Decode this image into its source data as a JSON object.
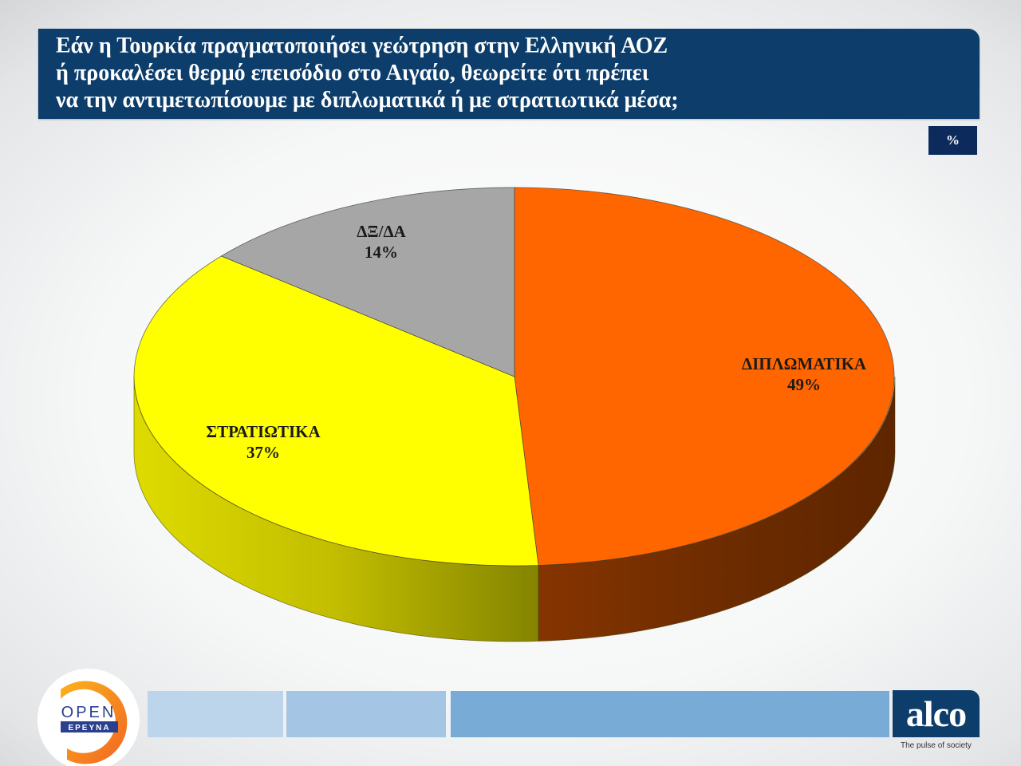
{
  "title": {
    "lines": [
      "Εάν η Τουρκία πραγματοποιήσει γεώτρηση στην Ελληνική ΑΟΖ",
      "ή προκαλέσει θερμό επεισόδιο στο Αιγαίο, θεωρείτε ότι πρέπει",
      "να την αντιμετωπίσουμε με διπλωματικά ή με στρατιωτικά μέσα;"
    ]
  },
  "unit_badge": "%",
  "chart_data": {
    "type": "pie",
    "style": "3d",
    "title": "Εάν η Τουρκία πραγματοποιήσει γεώτρηση στην Ελληνική ΑΟΖ ή προκαλέσει θερμό επεισόδιο στο Αιγαίο, θεωρείτε ότι πρέπει να την αντιμετωπίσουμε με διπλωματικά ή με στρατιωτικά μέσα;",
    "unit": "%",
    "categories": [
      "ΔΙΠΛΩΜΑΤΙΚΑ",
      "ΣΤΡΑΤΙΩΤΙΚΑ",
      "ΔΞ/ΔΑ"
    ],
    "values": [
      49,
      37,
      14
    ],
    "labels": [
      "49%",
      "37%",
      "14%"
    ],
    "colors": [
      "#ff6600",
      "#ffff00",
      "#a6a6a6"
    ],
    "side_colors": [
      "#7a3000",
      "#c8c400",
      "#808080"
    ],
    "start_angle": "12 o'clock",
    "direction": "clockwise",
    "legend": "none (inline labels)"
  },
  "footer": {
    "left_logo": {
      "top": "OPEN",
      "bottom": "ΕΡΕΥΝΑ"
    },
    "right_logo": {
      "name": "alco",
      "tagline": "The pulse of society"
    },
    "bar_colors": [
      "#bdd5ea",
      "#a4c6e4",
      "#78acd6"
    ]
  }
}
